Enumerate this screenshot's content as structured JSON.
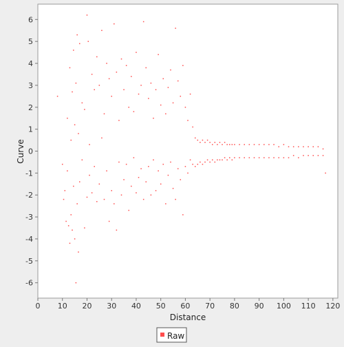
{
  "chart_data": {
    "type": "scatter",
    "title": "",
    "xlabel": "Distance",
    "ylabel": "Curve",
    "xlim": [
      0,
      122
    ],
    "ylim": [
      -6.7,
      6.7
    ],
    "xticks": [
      "0",
      "10",
      "20",
      "30",
      "40",
      "50",
      "60",
      "70",
      "80",
      "90",
      "100",
      "110",
      "120"
    ],
    "yticks": [
      "-6",
      "-5",
      "-4",
      "-3",
      "-2",
      "-1",
      "0",
      "1",
      "2",
      "3",
      "4",
      "5",
      "6"
    ],
    "grid": false,
    "legend_position": "bottom-center",
    "series": [
      {
        "name": "Raw",
        "color": "#ff4d4d",
        "description": "",
        "points": [
          [
            8,
            2.5
          ],
          [
            10,
            -0.6
          ],
          [
            10.5,
            -2.2
          ],
          [
            11,
            -1.8
          ],
          [
            11.5,
            -3.2
          ],
          [
            12,
            1.5
          ],
          [
            12,
            -0.9
          ],
          [
            12.5,
            -3.4
          ],
          [
            13,
            3.8
          ],
          [
            13,
            -4.2
          ],
          [
            13.5,
            0.5
          ],
          [
            13.5,
            -2.9
          ],
          [
            14,
            2.7
          ],
          [
            14,
            -3.6
          ],
          [
            14.5,
            4.6
          ],
          [
            14.5,
            -1.6
          ],
          [
            15,
            -4.0
          ],
          [
            15,
            1.2
          ],
          [
            15.5,
            -6.0
          ],
          [
            15.5,
            3.1
          ],
          [
            16,
            5.3
          ],
          [
            16,
            -2.4
          ],
          [
            16.5,
            0.8
          ],
          [
            16.5,
            -4.6
          ],
          [
            17,
            4.9
          ],
          [
            17,
            -1.4
          ],
          [
            18,
            2.2
          ],
          [
            18,
            -0.4
          ],
          [
            19,
            -3.5
          ],
          [
            19,
            1.9
          ],
          [
            20,
            6.2
          ],
          [
            20,
            -2.1
          ],
          [
            20.5,
            5.0
          ],
          [
            21,
            0.3
          ],
          [
            21,
            -1.1
          ],
          [
            22,
            3.5
          ],
          [
            22,
            -1.9
          ],
          [
            23,
            2.8
          ],
          [
            23,
            -0.7
          ],
          [
            24,
            4.3
          ],
          [
            24,
            -2.3
          ],
          [
            25,
            3.0
          ],
          [
            25,
            -1.5
          ],
          [
            26,
            5.5
          ],
          [
            26,
            0.6
          ],
          [
            27,
            -2.2
          ],
          [
            27,
            1.7
          ],
          [
            28,
            4.0
          ],
          [
            28,
            -0.9
          ],
          [
            29,
            3.3
          ],
          [
            29,
            -3.2
          ],
          [
            30,
            2.5
          ],
          [
            30,
            -1.8
          ],
          [
            31,
            5.8
          ],
          [
            31,
            -2.4
          ],
          [
            32,
            3.6
          ],
          [
            32,
            -3.6
          ],
          [
            33,
            1.4
          ],
          [
            33,
            -0.5
          ],
          [
            34,
            4.2
          ],
          [
            34,
            -2.0
          ],
          [
            35,
            2.8
          ],
          [
            35,
            -1.3
          ],
          [
            36,
            3.9
          ],
          [
            36,
            -0.6
          ],
          [
            37,
            2.0
          ],
          [
            37,
            -2.7
          ],
          [
            38,
            3.4
          ],
          [
            38,
            -1.6
          ],
          [
            39,
            1.8
          ],
          [
            39,
            -0.3
          ],
          [
            40,
            4.5
          ],
          [
            40,
            -1.9
          ],
          [
            41,
            2.6
          ],
          [
            41,
            -1.2
          ],
          [
            42,
            3.0
          ],
          [
            42,
            -0.8
          ],
          [
            43,
            5.9
          ],
          [
            43,
            -2.2
          ],
          [
            44,
            3.8
          ],
          [
            44,
            -1.4
          ],
          [
            45,
            2.4
          ],
          [
            45,
            -0.7
          ],
          [
            46,
            3.1
          ],
          [
            46,
            -2.0
          ],
          [
            47,
            1.5
          ],
          [
            47,
            -0.4
          ],
          [
            48,
            2.8
          ],
          [
            48,
            -1.8
          ],
          [
            49,
            4.4
          ],
          [
            49,
            -0.9
          ],
          [
            50,
            2.1
          ],
          [
            50,
            -1.5
          ],
          [
            51,
            3.3
          ],
          [
            51,
            -0.6
          ],
          [
            52,
            1.7
          ],
          [
            52,
            -2.4
          ],
          [
            53,
            2.9
          ],
          [
            53,
            -1.1
          ],
          [
            54,
            3.7
          ],
          [
            54,
            -0.5
          ],
          [
            55,
            2.2
          ],
          [
            55,
            -1.7
          ],
          [
            56,
            5.6
          ],
          [
            56,
            -2.2
          ],
          [
            57,
            3.2
          ],
          [
            57,
            -0.8
          ],
          [
            58,
            2.5
          ],
          [
            58,
            -1.3
          ],
          [
            59,
            3.9
          ],
          [
            59,
            -2.9
          ],
          [
            60,
            2.0
          ],
          [
            60,
            -0.7
          ],
          [
            61,
            1.4
          ],
          [
            61,
            -1.0
          ],
          [
            62,
            2.6
          ],
          [
            62,
            -0.4
          ],
          [
            63,
            1.1
          ],
          [
            63,
            -0.6
          ],
          [
            64,
            0.6
          ],
          [
            64,
            -0.7
          ],
          [
            65,
            0.5
          ],
          [
            65,
            -0.6
          ],
          [
            66,
            0.4
          ],
          [
            66,
            -0.5
          ],
          [
            67,
            0.5
          ],
          [
            67,
            -0.6
          ],
          [
            68,
            0.4
          ],
          [
            68,
            -0.5
          ],
          [
            69,
            0.5
          ],
          [
            69,
            -0.4
          ],
          [
            70,
            0.4
          ],
          [
            70,
            -0.5
          ],
          [
            71,
            0.3
          ],
          [
            71,
            -0.4
          ],
          [
            72,
            0.4
          ],
          [
            72,
            -0.5
          ],
          [
            73,
            0.3
          ],
          [
            73,
            -0.4
          ],
          [
            74,
            0.4
          ],
          [
            74,
            -0.4
          ],
          [
            75,
            0.3
          ],
          [
            75,
            -0.4
          ],
          [
            76,
            0.4
          ],
          [
            76,
            -0.3
          ],
          [
            77,
            0.3
          ],
          [
            77,
            -0.4
          ],
          [
            78,
            0.3
          ],
          [
            78,
            -0.3
          ],
          [
            79,
            0.3
          ],
          [
            79,
            -0.4
          ],
          [
            80,
            0.3
          ],
          [
            80,
            -0.3
          ],
          [
            82,
            0.3
          ],
          [
            82,
            -0.3
          ],
          [
            84,
            0.3
          ],
          [
            84,
            -0.3
          ],
          [
            86,
            0.3
          ],
          [
            86,
            -0.3
          ],
          [
            88,
            0.3
          ],
          [
            88,
            -0.3
          ],
          [
            90,
            0.3
          ],
          [
            90,
            -0.3
          ],
          [
            92,
            0.3
          ],
          [
            92,
            -0.3
          ],
          [
            94,
            0.3
          ],
          [
            94,
            -0.3
          ],
          [
            96,
            0.3
          ],
          [
            96,
            -0.3
          ],
          [
            98,
            0.2
          ],
          [
            98,
            -0.3
          ],
          [
            100,
            0.3
          ],
          [
            100,
            -0.3
          ],
          [
            102,
            0.2
          ],
          [
            102,
            -0.3
          ],
          [
            104,
            0.2
          ],
          [
            104,
            -0.2
          ],
          [
            106,
            0.2
          ],
          [
            106,
            -0.3
          ],
          [
            108,
            0.2
          ],
          [
            108,
            -0.2
          ],
          [
            110,
            0.2
          ],
          [
            110,
            -0.2
          ],
          [
            112,
            0.2
          ],
          [
            112,
            -0.2
          ],
          [
            114,
            0.2
          ],
          [
            114,
            -0.2
          ],
          [
            116,
            0.1
          ],
          [
            116,
            -0.2
          ],
          [
            117,
            -1.0
          ]
        ]
      }
    ]
  },
  "legend": {
    "label": "Raw",
    "swatch_color": "#ff4d4d"
  }
}
